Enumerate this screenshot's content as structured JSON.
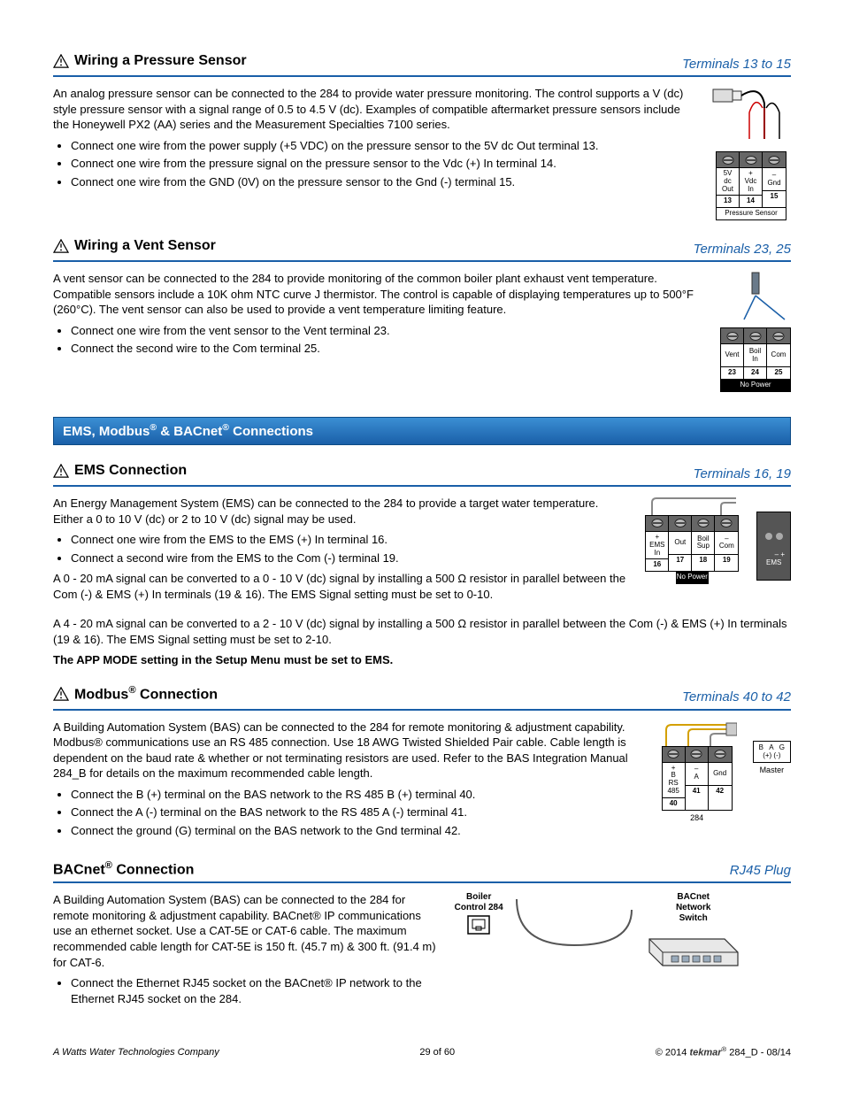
{
  "sections": {
    "pressure": {
      "title": "Wiring a Pressure Sensor",
      "terminals": "Terminals 13 to 15",
      "intro": "An analog pressure sensor can be connected to the 284 to provide water pressure monitoring. The control supports a V (dc) style pressure sensor with a signal range of 0.5 to 4.5 V (dc). Examples of compatible aftermarket pressure sensors include the Honeywell PX2 (AA) series and the Measurement Specialties 7100 series.",
      "bullets": [
        "Connect one wire from the power supply (+5 VDC) on the pressure sensor to the 5V dc Out terminal 13.",
        "Connect one wire from the pressure signal on the pressure sensor to the Vdc (+) In terminal 14.",
        "Connect one wire from the GND (0V) on the pressure sensor to the Gnd (-) terminal 15."
      ],
      "diagram": {
        "cells": [
          {
            "label_lines": [
              "5V",
              "dc",
              "Out"
            ],
            "num": "13"
          },
          {
            "label_lines": [
              "+",
              "Vdc",
              "In"
            ],
            "num": "14"
          },
          {
            "label_lines": [
              "–",
              "Gnd",
              ""
            ],
            "num": "15"
          }
        ],
        "caption": "Pressure Sensor",
        "caption_style": "white"
      }
    },
    "vent": {
      "title": "Wiring a Vent Sensor",
      "terminals": "Terminals 23, 25",
      "intro": "A vent sensor can be connected to the 284 to provide monitoring of the common boiler plant exhaust vent temperature. Compatible sensors include a 10K ohm NTC curve J thermistor. The control is capable of displaying temperatures up to 500°F (260°C). The vent sensor can also be used to provide a vent temperature limiting feature.",
      "bullets": [
        "Connect one wire from the vent sensor to the Vent terminal 23.",
        "Connect the second wire to the Com terminal 25."
      ],
      "diagram": {
        "cells": [
          {
            "label_lines": [
              "Vent"
            ],
            "num": "23"
          },
          {
            "label_lines": [
              "Boil",
              "In"
            ],
            "num": "24"
          },
          {
            "label_lines": [
              "Com"
            ],
            "num": "25"
          }
        ],
        "caption": "No Power",
        "caption_style": "black"
      }
    },
    "banner": "EMS, Modbus® & BACnet® Connections",
    "ems": {
      "title": "EMS Connection",
      "terminals": "Terminals 16, 19",
      "intro": "An Energy Management System (EMS) can be connected to the 284 to provide a target water temperature. Either a 0 to 10 V (dc) or 2 to 10 V (dc) signal may be used.",
      "bullets": [
        "Connect one wire from the EMS to the EMS (+) In terminal 16.",
        "Connect a second wire from the EMS to the Com (-) terminal 19."
      ],
      "para2": "A 0 - 20 mA signal can be converted to a 0 - 10 V (dc) signal by installing a 500 Ω resistor in parallel between the Com (-) & EMS (+) In terminals (19 & 16). The EMS Signal setting must be set to 0-10.",
      "para3": "A 4 - 20 mA signal can be converted to a 2 - 10 V (dc) signal by installing a 500 Ω resistor in parallel between the Com (-) & EMS (+) In terminals (19 & 16). The EMS Signal setting must be set to 2-10.",
      "app_mode": "The APP MODE setting in the Setup Menu must be set to EMS.",
      "diagram": {
        "cells": [
          {
            "label_lines": [
              "+",
              "EMS",
              "In"
            ],
            "num": "16"
          },
          {
            "label_lines": [
              "Out"
            ],
            "num": "17"
          },
          {
            "label_lines": [
              "Boil",
              "Sup"
            ],
            "num": "18"
          },
          {
            "label_lines": [
              "–",
              "Com"
            ],
            "num": "19"
          }
        ],
        "caption": "No Power",
        "caption_style": "black",
        "ems_box_labels": "– +\nEMS"
      }
    },
    "modbus": {
      "title_html": "Modbus<sup>®</sup> Connection",
      "terminals": "Terminals 40 to 42",
      "intro": "A Building Automation System (BAS) can be connected to the 284 for remote monitoring & adjustment capability. Modbus® communications use an RS 485 connection. Use 18 AWG Twisted Shielded Pair cable. Cable length is dependent on the baud rate & whether or not terminating resistors are used. Refer to the BAS Integration Manual 284_B for details on the maximum recommended cable length.",
      "bullets": [
        "Connect the B (+) terminal on the BAS network to the RS 485 B (+) terminal 40.",
        "Connect the A (-) terminal on the BAS network to the RS 485 A (-) terminal 41.",
        "Connect the ground (G) terminal on the BAS network to the Gnd terminal 42."
      ],
      "diagram_left": {
        "cells": [
          {
            "label_lines": [
              "+",
              "B",
              "RS 485"
            ],
            "num": "40"
          },
          {
            "label_lines": [
              "–",
              "A",
              ""
            ],
            "num": "41"
          },
          {
            "label_lines": [
              "",
              "Gnd"
            ],
            "num": "42"
          }
        ],
        "caption": "284"
      },
      "diagram_right": {
        "labels": "B   A   G\n(+) (-)",
        "caption": "Master"
      }
    },
    "bacnet": {
      "title_html": "BACnet<sup>®</sup> Connection",
      "terminals": "RJ45 Plug",
      "intro": "A Building Automation System (BAS) can be connected to the 284 for remote monitoring & adjustment capability. BACnet® IP communications use an ethernet socket. Use a CAT-5E or CAT-6 cable. The maximum recommended cable length for CAT-5E is 150 ft. (45.7 m) & 300 ft. (91.4 m) for CAT-6.",
      "bullets": [
        "Connect the Ethernet RJ45 socket on the BACnet® IP network to the Ethernet RJ45 socket on the 284."
      ],
      "left_label": "Boiler\nControl 284",
      "right_label": "BACnet\nNetwork\nSwitch"
    }
  },
  "footer": {
    "left": "A Watts Water Technologies Company",
    "center": "29 of 60",
    "right_copyright": "© 2014",
    "right_brand": "tekmar",
    "right_doc": "284_D - 08/14"
  },
  "colors": {
    "accent": "#1a5fa8"
  }
}
